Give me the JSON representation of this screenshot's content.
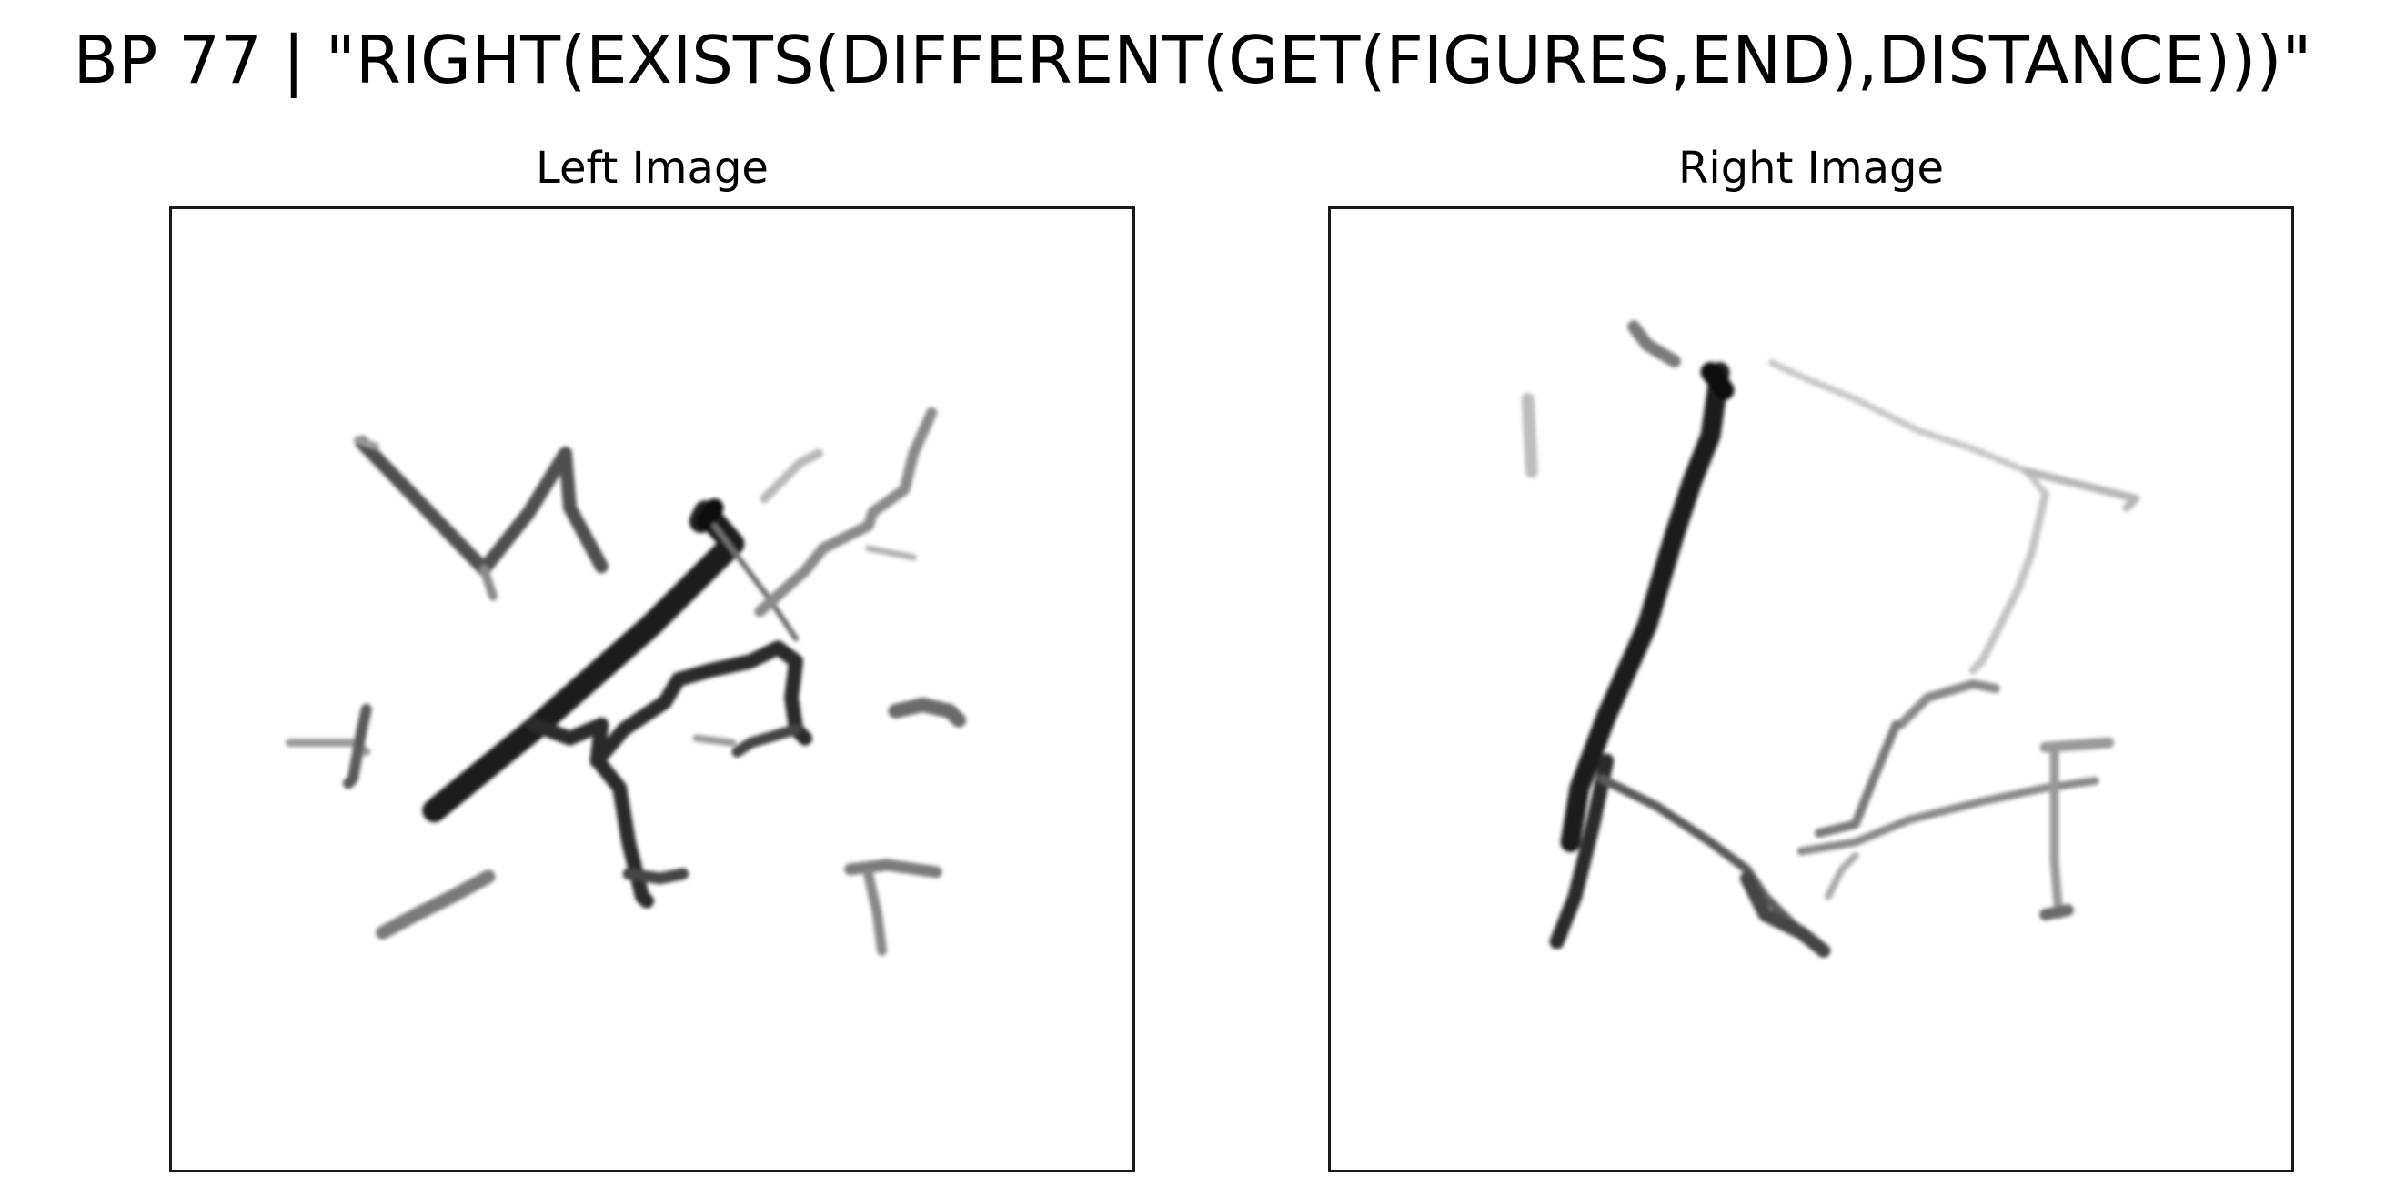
{
  "figure": {
    "title": "BP 77 | \"RIGHT(EXISTS(DIFFERENT(GET(FIGURES,END),DISTANCE)))\""
  },
  "panels": {
    "left": {
      "title": "Left Image"
    },
    "right": {
      "title": "Right Image"
    }
  },
  "colors": {
    "background": "#ffffff",
    "frame": "#1a1a1a",
    "stroke_dark": "#1e1e1e",
    "stroke_mid": "#555555",
    "stroke_light": "#9a9a9a",
    "stroke_faint": "#c4c4c4"
  }
}
